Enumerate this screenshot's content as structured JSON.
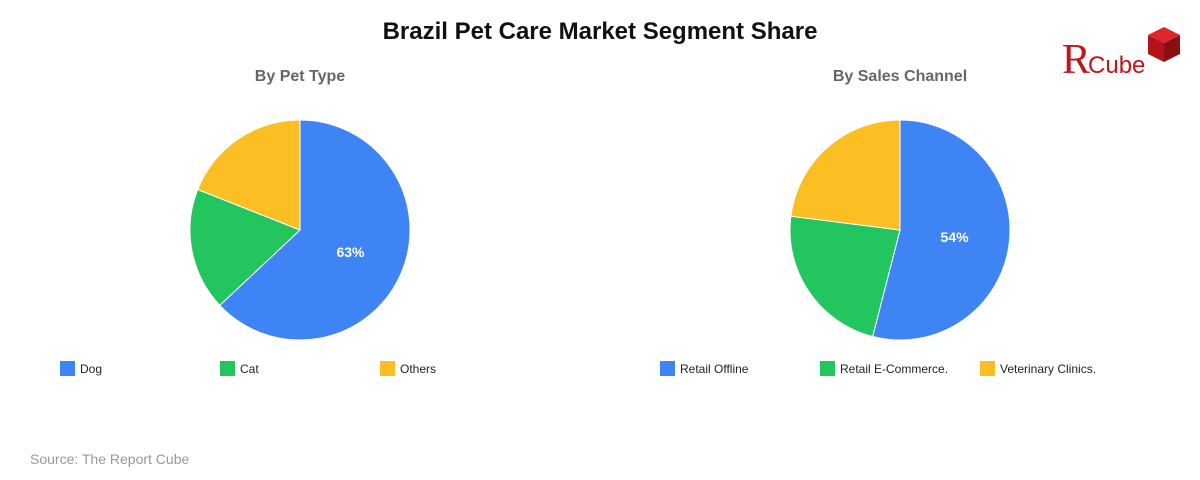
{
  "title": "Brazil Pet Care Market Segment Share",
  "source": "Source: The Report Cube",
  "logo": {
    "letter": "Я",
    "word": "Cube",
    "color": "#c0151b"
  },
  "chart_data": [
    {
      "type": "pie",
      "title": "By Pet Type",
      "labels": [
        "Dog",
        "Cat",
        "Others"
      ],
      "values": [
        63,
        18,
        19
      ],
      "colors": [
        "#3f84f4",
        "#22c55e",
        "#fbbf24"
      ],
      "data_labels": [
        "63%",
        "",
        ""
      ],
      "legend": "bottom"
    },
    {
      "type": "pie",
      "title": "By Sales Channel",
      "labels": [
        "Retail Offline",
        "Retail E-Commerce.",
        "Veterinary Clinics."
      ],
      "values": [
        54,
        23,
        23
      ],
      "colors": [
        "#3f84f4",
        "#22c55e",
        "#fbbf24"
      ],
      "data_labels": [
        "54%",
        "",
        ""
      ],
      "legend": "bottom"
    }
  ]
}
